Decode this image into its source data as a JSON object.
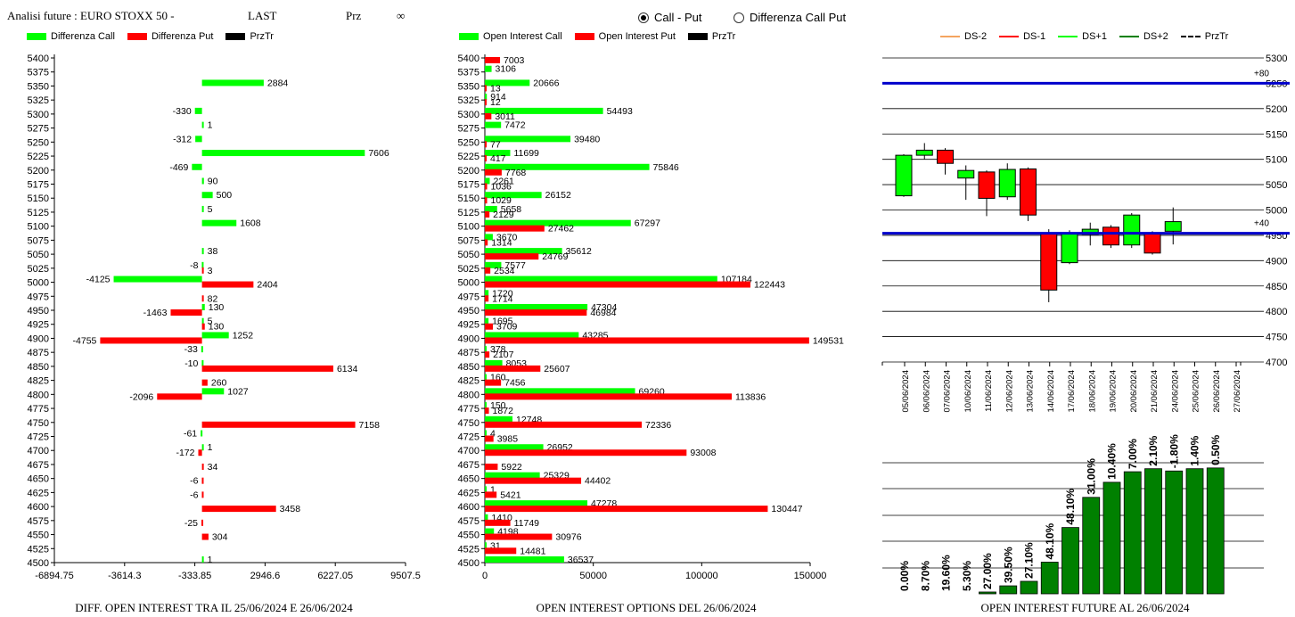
{
  "header": {
    "title": "Analisi future : EURO STOXX 50 -",
    "last_label": "LAST",
    "prz_label": "Prz",
    "prz_value": "∞"
  },
  "mode": {
    "options": [
      "Call - Put",
      "Differenza Call Put"
    ],
    "selected": 0
  },
  "colors": {
    "green": "#00ff00",
    "red": "#ff0000",
    "dark_green": "#008000",
    "blue": "#0000cc",
    "orange": "#f4a460",
    "black": "#000000"
  },
  "panel1": {
    "legend": [
      "Differenza Call",
      "Differenza Put",
      "PrzTr"
    ],
    "caption": "DIFF. OPEN INTEREST TRA IL 25/06/2024 E 26/06/2024"
  },
  "panel2": {
    "legend": [
      "Open Interest Call",
      "Open Interest Put",
      "PrzTr"
    ],
    "caption": "OPEN INTEREST OPTIONS DEL 26/06/2024"
  },
  "panel3": {
    "legend": [
      "DS-2",
      "DS-1",
      "DS+1",
      "DS+2",
      "PrzTr"
    ],
    "caption": "OPEN INTEREST FUTURE AL 26/06/2024"
  },
  "chart_data": [
    {
      "type": "bar",
      "orientation": "horizontal",
      "categories": [
        "5400",
        "5375",
        "5350",
        "5325",
        "5300",
        "5275",
        "5250",
        "5225",
        "5200",
        "5175",
        "5150",
        "5125",
        "5100",
        "5075",
        "5050",
        "5025",
        "5000",
        "4975",
        "4950",
        "4925",
        "4900",
        "4875",
        "4850",
        "4825",
        "4800",
        "4775",
        "4750",
        "4725",
        "4700",
        "4675",
        "4650",
        "4625",
        "4600",
        "4575",
        "4550",
        "4525",
        "4500"
      ],
      "series": [
        {
          "name": "Differenza Call",
          "values": [
            null,
            null,
            2884,
            null,
            -330,
            1,
            -312,
            7606,
            -469,
            90,
            500,
            5,
            1608,
            null,
            38,
            -8,
            -4125,
            null,
            130,
            5,
            1252,
            -33,
            -10,
            null,
            1027,
            null,
            null,
            -61,
            1,
            null,
            null,
            null,
            null,
            null,
            null,
            null,
            1
          ]
        },
        {
          "name": "Differenza Put",
          "values": [
            null,
            null,
            null,
            null,
            null,
            null,
            null,
            null,
            null,
            null,
            null,
            null,
            null,
            null,
            null,
            3,
            2404,
            82,
            -1463,
            130,
            -4755,
            null,
            6134,
            260,
            -2096,
            null,
            7158,
            null,
            -172,
            34,
            -6,
            -6,
            3458,
            -25,
            304,
            null,
            null
          ]
        }
      ],
      "xticks": [
        "-6894.75",
        "-3614.3",
        "-333.85",
        "2946.6",
        "6227.05",
        "9507.5"
      ],
      "xlim": [
        -6894.75,
        9507.5
      ],
      "xlabel": "",
      "ylabel": ""
    },
    {
      "type": "bar",
      "orientation": "horizontal",
      "categories": [
        "5400",
        "5375",
        "5350",
        "5325",
        "5300",
        "5275",
        "5250",
        "5225",
        "5200",
        "5175",
        "5150",
        "5125",
        "5100",
        "5075",
        "5050",
        "5025",
        "5000",
        "4975",
        "4950",
        "4925",
        "4900",
        "4875",
        "4850",
        "4825",
        "4800",
        "4775",
        "4750",
        "4725",
        "4700",
        "4675",
        "4650",
        "4625",
        "4600",
        "4575",
        "4550",
        "4525",
        "4500"
      ],
      "series": [
        {
          "name": "Open Interest Call",
          "values": [
            null,
            3106,
            20666,
            914,
            54493,
            7472,
            39480,
            11699,
            75846,
            2261,
            26152,
            5658,
            67297,
            3670,
            35612,
            7577,
            107184,
            1720,
            47304,
            1695,
            43285,
            378,
            8053,
            160,
            69260,
            150,
            12748,
            4,
            26952,
            null,
            25329,
            1,
            47278,
            1410,
            4198,
            31,
            36537
          ]
        },
        {
          "name": "Open Interest Put",
          "values": [
            7003,
            null,
            13,
            12,
            3011,
            null,
            77,
            417,
            7768,
            1036,
            1029,
            2129,
            27462,
            1314,
            24769,
            2534,
            122443,
            1714,
            46984,
            3709,
            149531,
            2107,
            25607,
            7456,
            113836,
            1872,
            72336,
            3985,
            93008,
            5922,
            44402,
            5421,
            130447,
            11749,
            30976,
            14481,
            null
          ]
        }
      ],
      "xticks": [
        "0",
        "50000",
        "100000",
        "150000"
      ],
      "xlim": [
        0,
        150000
      ],
      "xlabel": "",
      "ylabel": ""
    },
    {
      "type": "candlestick",
      "dates": [
        "05/06/2024",
        "06/06/2024",
        "07/06/2024",
        "10/06/2024",
        "11/06/2024",
        "12/06/2024",
        "13/06/2024",
        "14/06/2024",
        "17/06/2024",
        "18/06/2024",
        "19/06/2024",
        "20/06/2024",
        "21/06/2024",
        "24/06/2024",
        "25/06/2024",
        "26/06/2024",
        "27/06/2024"
      ],
      "candles": [
        {
          "open": 5028,
          "close": 5108,
          "high": 5110,
          "low": 5026
        },
        {
          "open": 5108,
          "close": 5118,
          "high": 5132,
          "low": 5100
        },
        {
          "open": 5118,
          "close": 5092,
          "high": 5122,
          "low": 5070
        },
        {
          "open": 5063,
          "close": 5078,
          "high": 5088,
          "low": 5020
        },
        {
          "open": 5075,
          "close": 5023,
          "high": 5078,
          "low": 4988
        },
        {
          "open": 5026,
          "close": 5080,
          "high": 5092,
          "low": 5020
        },
        {
          "open": 5081,
          "close": 4990,
          "high": 5084,
          "low": 4978
        },
        {
          "open": 4955,
          "close": 4842,
          "high": 4962,
          "low": 4818
        },
        {
          "open": 4896,
          "close": 4955,
          "high": 4960,
          "low": 4893
        },
        {
          "open": 4952,
          "close": 4962,
          "high": 4975,
          "low": 4930
        },
        {
          "open": 4966,
          "close": 4931,
          "high": 4970,
          "low": 4925
        },
        {
          "open": 4931,
          "close": 4990,
          "high": 4994,
          "low": 4925
        },
        {
          "open": 4954,
          "close": 4915,
          "high": 4958,
          "low": 4912
        },
        {
          "open": 4958,
          "close": 4977,
          "high": 5005,
          "low": 4932
        },
        null,
        null,
        null
      ],
      "hlines": [
        {
          "value": 5250,
          "label": "+80"
        },
        {
          "value": 4954,
          "label": "+40"
        }
      ],
      "ylim": [
        4700,
        5300
      ],
      "yticks": [
        4700,
        4750,
        4800,
        4850,
        4900,
        4950,
        5000,
        5050,
        5100,
        5150,
        5200,
        5250,
        5300
      ]
    },
    {
      "type": "bar",
      "categories": [
        "05/06/2024",
        "06/06/2024",
        "07/06/2024",
        "10/06/2024",
        "11/06/2024",
        "12/06/2024",
        "13/06/2024",
        "14/06/2024",
        "17/06/2024",
        "18/06/2024",
        "19/06/2024",
        "20/06/2024",
        "21/06/2024",
        "24/06/2024",
        "25/06/2024",
        "26/06/2024"
      ],
      "values": [
        0,
        0,
        0,
        0,
        1.2,
        5.3,
        8.3,
        21,
        44,
        64,
        74,
        81,
        83,
        81.5,
        83,
        83.5
      ],
      "labels": [
        "0.00%",
        "8.70%",
        "19.60%",
        "5.30%",
        "27.00%",
        "39.50%",
        "27.10%",
        "48.10%",
        "48.10%",
        "31.00%",
        "10.40%",
        "7.00%",
        "2.10%",
        "-1.80%",
        "1.40%",
        "0.50%"
      ],
      "ylim": [
        0,
        100
      ]
    }
  ]
}
